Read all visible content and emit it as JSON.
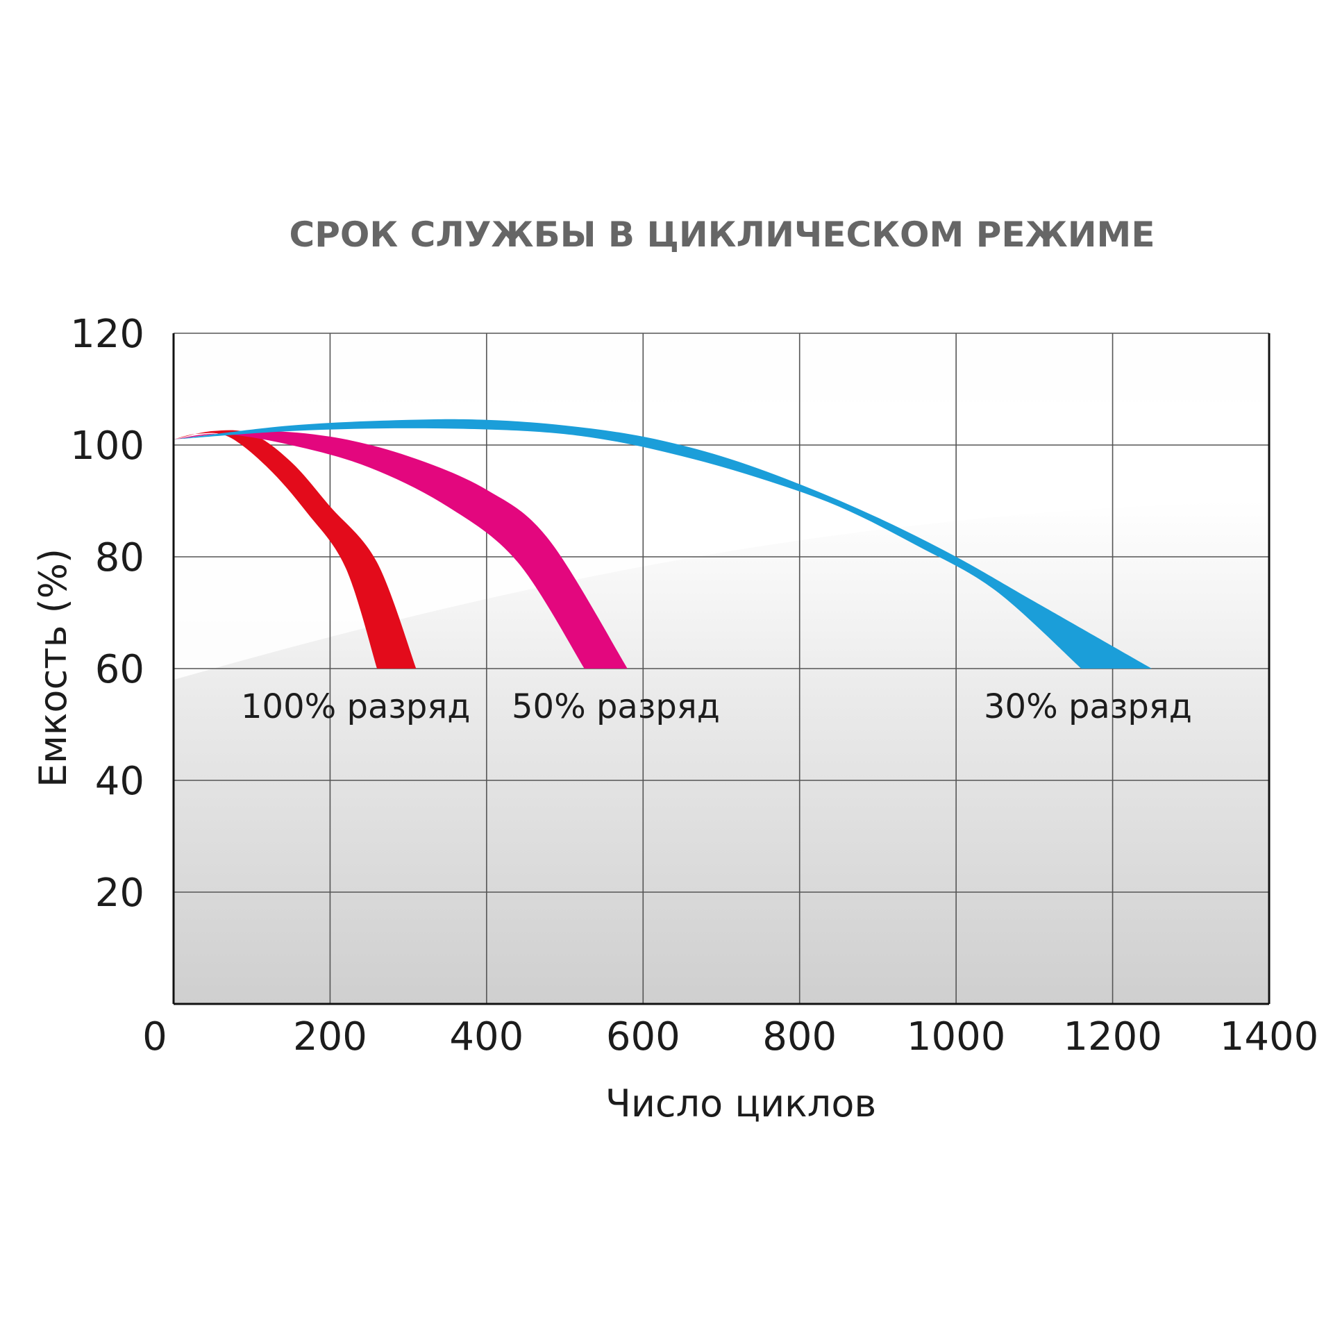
{
  "chart_data": {
    "type": "area",
    "title": "СРОК СЛУЖБЫ В ЦИКЛИЧЕСКОМ РЕЖИМЕ",
    "xlabel": "Число циклов",
    "ylabel": "Емкость (%)",
    "xlim": [
      0,
      1400
    ],
    "ylim": [
      0,
      120
    ],
    "xticks": [
      0,
      200,
      400,
      600,
      800,
      1000,
      1200,
      1400
    ],
    "yticks": [
      20,
      40,
      60,
      80,
      100,
      120
    ],
    "grid": true,
    "legend": "none",
    "series": [
      {
        "name": "100% разряд",
        "color": "#e30b1b",
        "upper": [
          [
            0,
            101
          ],
          [
            50,
            102.5
          ],
          [
            100,
            102
          ],
          [
            150,
            97
          ],
          [
            200,
            89
          ],
          [
            260,
            79
          ],
          [
            310,
            60
          ]
        ],
        "lower": [
          [
            0,
            101
          ],
          [
            30,
            102
          ],
          [
            70,
            101.5
          ],
          [
            120,
            96
          ],
          [
            170,
            88
          ],
          [
            220,
            78
          ],
          [
            260,
            60
          ]
        ]
      },
      {
        "name": "50% разряд",
        "color": "#e3077e",
        "upper": [
          [
            0,
            101
          ],
          [
            100,
            102.5
          ],
          [
            200,
            101.5
          ],
          [
            300,
            98
          ],
          [
            400,
            92
          ],
          [
            480,
            83
          ],
          [
            580,
            60
          ]
        ],
        "lower": [
          [
            0,
            101
          ],
          [
            60,
            102
          ],
          [
            150,
            100
          ],
          [
            250,
            96
          ],
          [
            350,
            89
          ],
          [
            440,
            79
          ],
          [
            525,
            60
          ]
        ]
      },
      {
        "name": "30% разряд",
        "color": "#1b9ed9",
        "upper": [
          [
            0,
            101
          ],
          [
            150,
            103.5
          ],
          [
            300,
            104.5
          ],
          [
            400,
            104.5
          ],
          [
            500,
            103.5
          ],
          [
            600,
            101.5
          ],
          [
            700,
            98
          ],
          [
            800,
            93
          ],
          [
            900,
            87
          ],
          [
            1000,
            80
          ],
          [
            1100,
            72
          ],
          [
            1250,
            60
          ]
        ],
        "lower": [
          [
            0,
            101
          ],
          [
            150,
            102.5
          ],
          [
            300,
            103
          ],
          [
            450,
            102.5
          ],
          [
            550,
            101
          ],
          [
            650,
            98
          ],
          [
            750,
            94
          ],
          [
            850,
            89
          ],
          [
            950,
            82
          ],
          [
            1050,
            74
          ],
          [
            1160,
            60
          ]
        ]
      }
    ],
    "annotations": [
      "100% разряд",
      "50% разряд",
      "30% разряд"
    ]
  }
}
